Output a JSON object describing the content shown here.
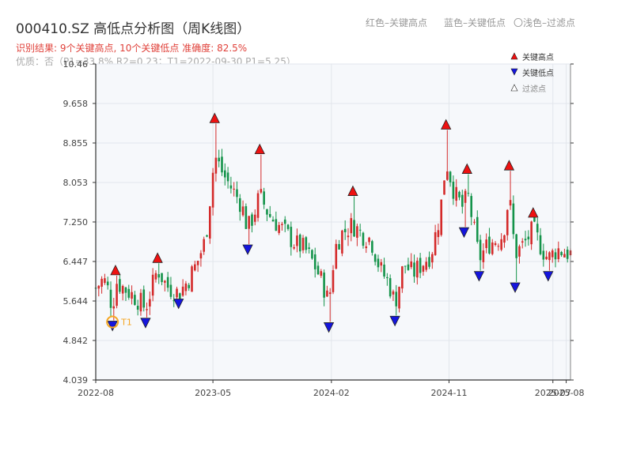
{
  "header": {
    "title": "000410.SZ 高低点分析图（周K线图）",
    "legend_red": "红色–关键高点",
    "legend_blue": "蓝色–关键低点",
    "legend_grey": "〇浅色–过滤点",
    "result_line": "识别结果: 9个关键高点, 10个关键低点  准确度: 82.5%",
    "quality_line": "优质：否（P1=33.8%  R2=0.23；T1=2022-09-30 P1=5.25）"
  },
  "colors": {
    "up": "#d42a2a",
    "down": "#14934a",
    "high_marker": "#ee1111",
    "low_marker": "#1515dd",
    "t1_ring": "#f5a623",
    "plot_bg": "#f6f8fb"
  },
  "chart_data": {
    "type": "candlestick",
    "y_ticks": [
      "4.039",
      "4.842",
      "5.644",
      "6.447",
      "7.250",
      "8.053",
      "8.855",
      "9.658",
      "10.46"
    ],
    "x_ticks": [
      "2022-08",
      "2023-05",
      "2024-02",
      "2024-11",
      "2025-07",
      "2025-08"
    ],
    "ylim": [
      4.039,
      10.46
    ],
    "x_range": [
      "2022-08-01",
      "2025-08-11"
    ],
    "grid": true,
    "legend_position": "top-right",
    "legend": {
      "high": "关键高点",
      "low": "关键低点",
      "filtered": "过滤点"
    },
    "t1_label": "T1",
    "t1": {
      "date": "2022-09-30",
      "price": 5.25
    },
    "key_highs": [
      {
        "date": "2022-09-16",
        "price": 6.16
      },
      {
        "date": "2022-12-23",
        "price": 6.41
      },
      {
        "date": "2023-05-05",
        "price": 9.25
      },
      {
        "date": "2023-08-18",
        "price": 8.62
      },
      {
        "date": "2024-03-22",
        "price": 7.77
      },
      {
        "date": "2024-10-25",
        "price": 9.12
      },
      {
        "date": "2024-12-13",
        "price": 8.22
      },
      {
        "date": "2025-03-21",
        "price": 8.29
      },
      {
        "date": "2025-05-16",
        "price": 7.33
      }
    ],
    "key_lows": [
      {
        "date": "2022-09-09",
        "price": 5.25
      },
      {
        "date": "2022-11-25",
        "price": 5.31
      },
      {
        "date": "2023-02-10",
        "price": 5.7
      },
      {
        "date": "2023-07-21",
        "price": 6.8
      },
      {
        "date": "2024-01-26",
        "price": 5.22
      },
      {
        "date": "2024-06-28",
        "price": 5.35
      },
      {
        "date": "2024-12-06",
        "price": 7.15
      },
      {
        "date": "2025-01-10",
        "price": 6.26
      },
      {
        "date": "2025-04-04",
        "price": 6.03
      },
      {
        "date": "2025-06-20",
        "price": 6.26
      }
    ],
    "close_path": [
      [
        "2022-08-01",
        5.9
      ],
      [
        "2022-08-19",
        6.1
      ],
      [
        "2022-09-02",
        5.8
      ],
      [
        "2022-09-09",
        5.45
      ],
      [
        "2022-09-16",
        6.05
      ],
      [
        "2022-10-14",
        5.85
      ],
      [
        "2022-11-04",
        5.7
      ],
      [
        "2022-11-25",
        5.5
      ],
      [
        "2022-12-09",
        5.9
      ],
      [
        "2022-12-23",
        6.3
      ],
      [
        "2023-01-13",
        5.95
      ],
      [
        "2023-02-10",
        5.8
      ],
      [
        "2023-03-03",
        6.05
      ],
      [
        "2023-03-24",
        6.4
      ],
      [
        "2023-04-14",
        6.9
      ],
      [
        "2023-05-05",
        8.6
      ],
      [
        "2023-05-26",
        8.2
      ],
      [
        "2023-06-16",
        7.9
      ],
      [
        "2023-07-07",
        7.6
      ],
      [
        "2023-07-21",
        7.1
      ],
      [
        "2023-08-04",
        7.4
      ],
      [
        "2023-08-18",
        7.8
      ],
      [
        "2023-09-08",
        7.4
      ],
      [
        "2023-09-29",
        7.2
      ],
      [
        "2023-10-20",
        7.0
      ],
      [
        "2023-11-10",
        6.8
      ],
      [
        "2023-12-01",
        6.7
      ],
      [
        "2023-12-22",
        6.4
      ],
      [
        "2024-01-12",
        6.0
      ],
      [
        "2024-01-26",
        5.6
      ],
      [
        "2024-02-09",
        6.7
      ],
      [
        "2024-02-23",
        7.0
      ],
      [
        "2024-03-22",
        7.2
      ],
      [
        "2024-04-12",
        7.0
      ],
      [
        "2024-05-03",
        6.9
      ],
      [
        "2024-05-24",
        6.3
      ],
      [
        "2024-06-14",
        6.0
      ],
      [
        "2024-06-28",
        5.6
      ],
      [
        "2024-07-19",
        6.4
      ],
      [
        "2024-08-09",
        6.2
      ],
      [
        "2024-08-30",
        6.4
      ],
      [
        "2024-09-20",
        6.6
      ],
      [
        "2024-10-11",
        7.4
      ],
      [
        "2024-10-25",
        8.5
      ],
      [
        "2024-11-15",
        7.8
      ],
      [
        "2024-12-06",
        7.5
      ],
      [
        "2024-12-13",
        7.9
      ],
      [
        "2024-12-27",
        7.2
      ],
      [
        "2025-01-10",
        6.5
      ],
      [
        "2025-01-31",
        6.8
      ],
      [
        "2025-02-21",
        6.9
      ],
      [
        "2025-03-07",
        7.0
      ],
      [
        "2025-03-21",
        7.8
      ],
      [
        "2025-04-04",
        6.6
      ],
      [
        "2025-04-25",
        6.8
      ],
      [
        "2025-05-16",
        7.1
      ],
      [
        "2025-06-06",
        6.7
      ],
      [
        "2025-06-20",
        6.5
      ],
      [
        "2025-07-11",
        6.7
      ],
      [
        "2025-08-11",
        6.6
      ]
    ]
  }
}
